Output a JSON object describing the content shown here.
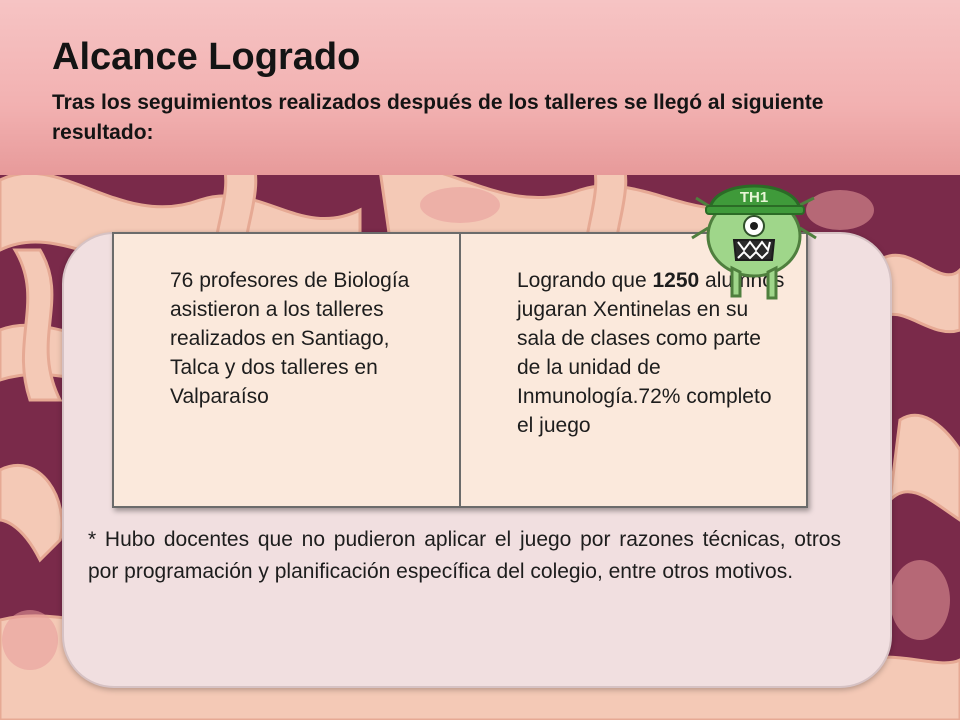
{
  "slide": {
    "title": "Alcance Logrado",
    "subtitle": "Tras los seguimientos realizados después de los talleres se llegó al siguiente resultado:"
  },
  "table": {
    "left_text": "76 profesores de Biología asistieron a los talleres realizados en Santiago, Talca y dos talleres en Valparaíso",
    "right_text_prefix": "Logrando que ",
    "right_number": "1250",
    "right_text_suffix": " alumnos jugaran Xentinelas en su sala de clases como parte de la unidad de Inmunología.72% completo el juego"
  },
  "footnote": "* Hubo docentes que no pudieron aplicar el juego por razones técnicas, otros por programación y planificación específica del colegio, entre otros motivos.",
  "mascot": {
    "icon": "th1-cell-mascot-icon",
    "helmet_label": "TH1"
  },
  "colors": {
    "header_band": "#f2b1b1",
    "background": "#7a2a4a",
    "panel": "#f1dfe0",
    "table_fill": "#fbe9dc",
    "mascot_green": "#8fcf7a"
  }
}
